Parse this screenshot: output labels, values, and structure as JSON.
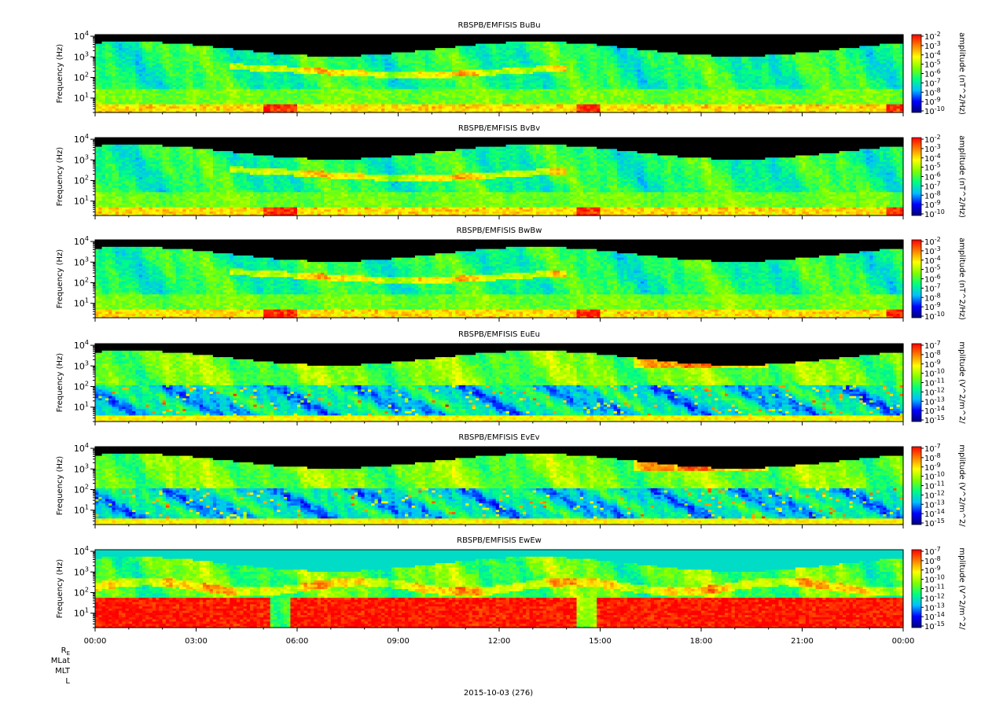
{
  "chart_data": {
    "type": "heatmap",
    "date_label": "2015-10-03 (276)",
    "x_tick_labels": [
      "00:00",
      "03:00",
      "06:00",
      "09:00",
      "12:00",
      "15:00",
      "18:00",
      "21:00",
      "00:00"
    ],
    "x_range_hours": [
      0,
      24
    ],
    "ephemeris_labels": [
      "R_E",
      "MLat",
      "MLT",
      "L"
    ],
    "y_label": "Frequency (Hz)",
    "y_scale": "log",
    "y_range_hz": [
      2,
      12000
    ],
    "y_tick_decades": [
      1,
      2,
      3,
      4
    ],
    "colormap": [
      "#00007f",
      "#0000ff",
      "#00bfff",
      "#00ff80",
      "#80ff00",
      "#ffff00",
      "#ff8000",
      "#ff0000"
    ],
    "panels": [
      {
        "title": "RBSPB/EMFISIS  BuBu",
        "colorbar_label": "amplitude (nT^2/Hz)",
        "colorbar_exponents": [
          -2,
          -3,
          -4,
          -5,
          -6,
          -7,
          -8,
          -9,
          -10
        ],
        "variant": "b"
      },
      {
        "title": "RBSPB/EMFISIS  BvBv",
        "colorbar_label": "amplitude (nT^2/Hz)",
        "colorbar_exponents": [
          -2,
          -3,
          -4,
          -5,
          -6,
          -7,
          -8,
          -9,
          -10
        ],
        "variant": "b"
      },
      {
        "title": "RBSPB/EMFISIS  BwBw",
        "colorbar_label": "amplitude (nT^2/Hz)",
        "colorbar_exponents": [
          -2,
          -3,
          -4,
          -5,
          -6,
          -7,
          -8,
          -9,
          -10
        ],
        "variant": "b"
      },
      {
        "title": "RBSPB/EMFISIS  EuEu",
        "colorbar_label": "mplitude (V^2/m^2/",
        "colorbar_exponents": [
          -7,
          -8,
          -9,
          -10,
          -11,
          -12,
          -13,
          -14,
          -15
        ],
        "variant": "e"
      },
      {
        "title": "RBSPB/EMFISIS  EvEv",
        "colorbar_label": "mplitude (V^2/m^2/",
        "colorbar_exponents": [
          -7,
          -8,
          -9,
          -10,
          -11,
          -12,
          -13,
          -14,
          -15
        ],
        "variant": "e"
      },
      {
        "title": "RBSPB/EMFISIS  EwEw",
        "colorbar_label": "mplitude (V^2/m^2/",
        "colorbar_exponents": [
          -7,
          -8,
          -9,
          -10,
          -11,
          -12,
          -13,
          -14,
          -15
        ],
        "variant": "ew"
      }
    ]
  }
}
